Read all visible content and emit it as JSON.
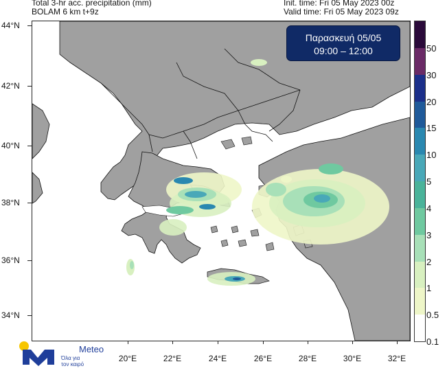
{
  "header": {
    "title_line1": "Total 3-hr acc. precipitation (mm)",
    "title_line2": "BOLAM 6 km t+9z",
    "init_time": "Init. time: Fri 05 May 2023 00z",
    "valid_time": "Valid time: Fri 05 May 2023 09z"
  },
  "date_box": {
    "day": "Παρασκευή  05/05",
    "time_range": "09:00 – 12:00"
  },
  "axes": {
    "lat_labels": [
      "44°N",
      "42°N",
      "40°N",
      "38°N",
      "36°N",
      "34°N"
    ],
    "lon_labels": [
      "20°E",
      "22°E",
      "24°E",
      "26°E",
      "28°E",
      "30°E",
      "32°E"
    ]
  },
  "legend": {
    "labels": [
      "50",
      "30",
      "20",
      "15",
      "10",
      "5",
      "4",
      "3",
      "2",
      "1",
      "0.5",
      "0.1"
    ],
    "colors": [
      "#2a0a3a",
      "#6a2a66",
      "#1b2f8a",
      "#1f5a9a",
      "#2a88b0",
      "#49a8b8",
      "#4ab39a",
      "#6fc9a0",
      "#a8e0b8",
      "#d8f0c0",
      "#eef6c8",
      "#ffffff"
    ]
  },
  "colors": {
    "land": "#a0a0a0",
    "sea": "#ffffff",
    "borders": "#111111"
  },
  "logo": {
    "brand": "Meteo",
    "tagline1": "Όλα για",
    "tagline2": "τον καιρό"
  }
}
